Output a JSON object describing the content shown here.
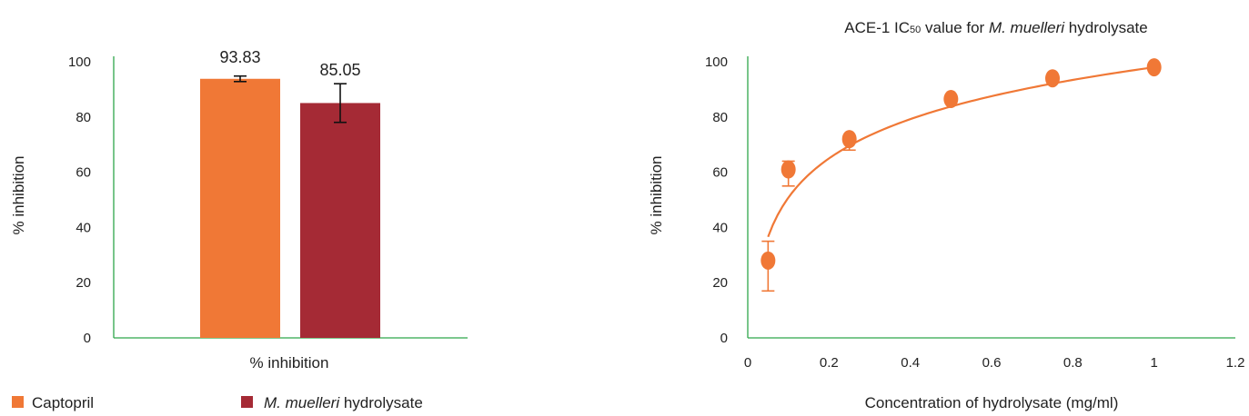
{
  "chart_data": [
    {
      "type": "bar",
      "title": "",
      "xlabel": "% inhibition",
      "ylabel": "% inhibition",
      "ylim": [
        0,
        100
      ],
      "yticks": [
        0,
        20,
        40,
        60,
        80,
        100
      ],
      "grid": false,
      "legend_position": "bottom-left",
      "series": [
        {
          "name": "Captopril",
          "value": 93.83,
          "error": 1.0,
          "label": "93.83",
          "color": "#F07836"
        },
        {
          "name_italic": "M. muelleri",
          "name_rest": " hydrolysate",
          "value": 85.05,
          "error": 7.0,
          "label": "85.05",
          "color": "#A52A35"
        }
      ]
    },
    {
      "type": "scatter",
      "title_prefix": "ACE-1 IC",
      "title_sub": "50",
      "title_middle": " value for ",
      "title_italic": "M. muelleri",
      "title_suffix": " hydrolysate",
      "xlabel": "Concentration of hydrolysate (mg/ml)",
      "ylabel": "% inhibition",
      "xlim": [
        0,
        1.2
      ],
      "ylim": [
        0,
        100
      ],
      "xticks": [
        0,
        0.2,
        0.4,
        0.6,
        0.8,
        1,
        1.2
      ],
      "yticks": [
        0,
        20,
        40,
        60,
        80,
        100
      ],
      "grid": false,
      "color": "#F07836",
      "points": [
        {
          "x": 0.05,
          "y": 28,
          "err_low": 11,
          "err_high": 7
        },
        {
          "x": 0.1,
          "y": 61,
          "err_low": 6,
          "err_high": 3
        },
        {
          "x": 0.25,
          "y": 72,
          "err_low": 4,
          "err_high": 0
        },
        {
          "x": 0.5,
          "y": 86.5,
          "err_low": 0,
          "err_high": 0
        },
        {
          "x": 0.75,
          "y": 94,
          "err_low": 0,
          "err_high": 0
        },
        {
          "x": 1.0,
          "y": 98,
          "err_low": 0,
          "err_high": 0
        }
      ],
      "trendline": {
        "type": "logarithmic",
        "a": 98,
        "b": 20.5
      }
    }
  ]
}
